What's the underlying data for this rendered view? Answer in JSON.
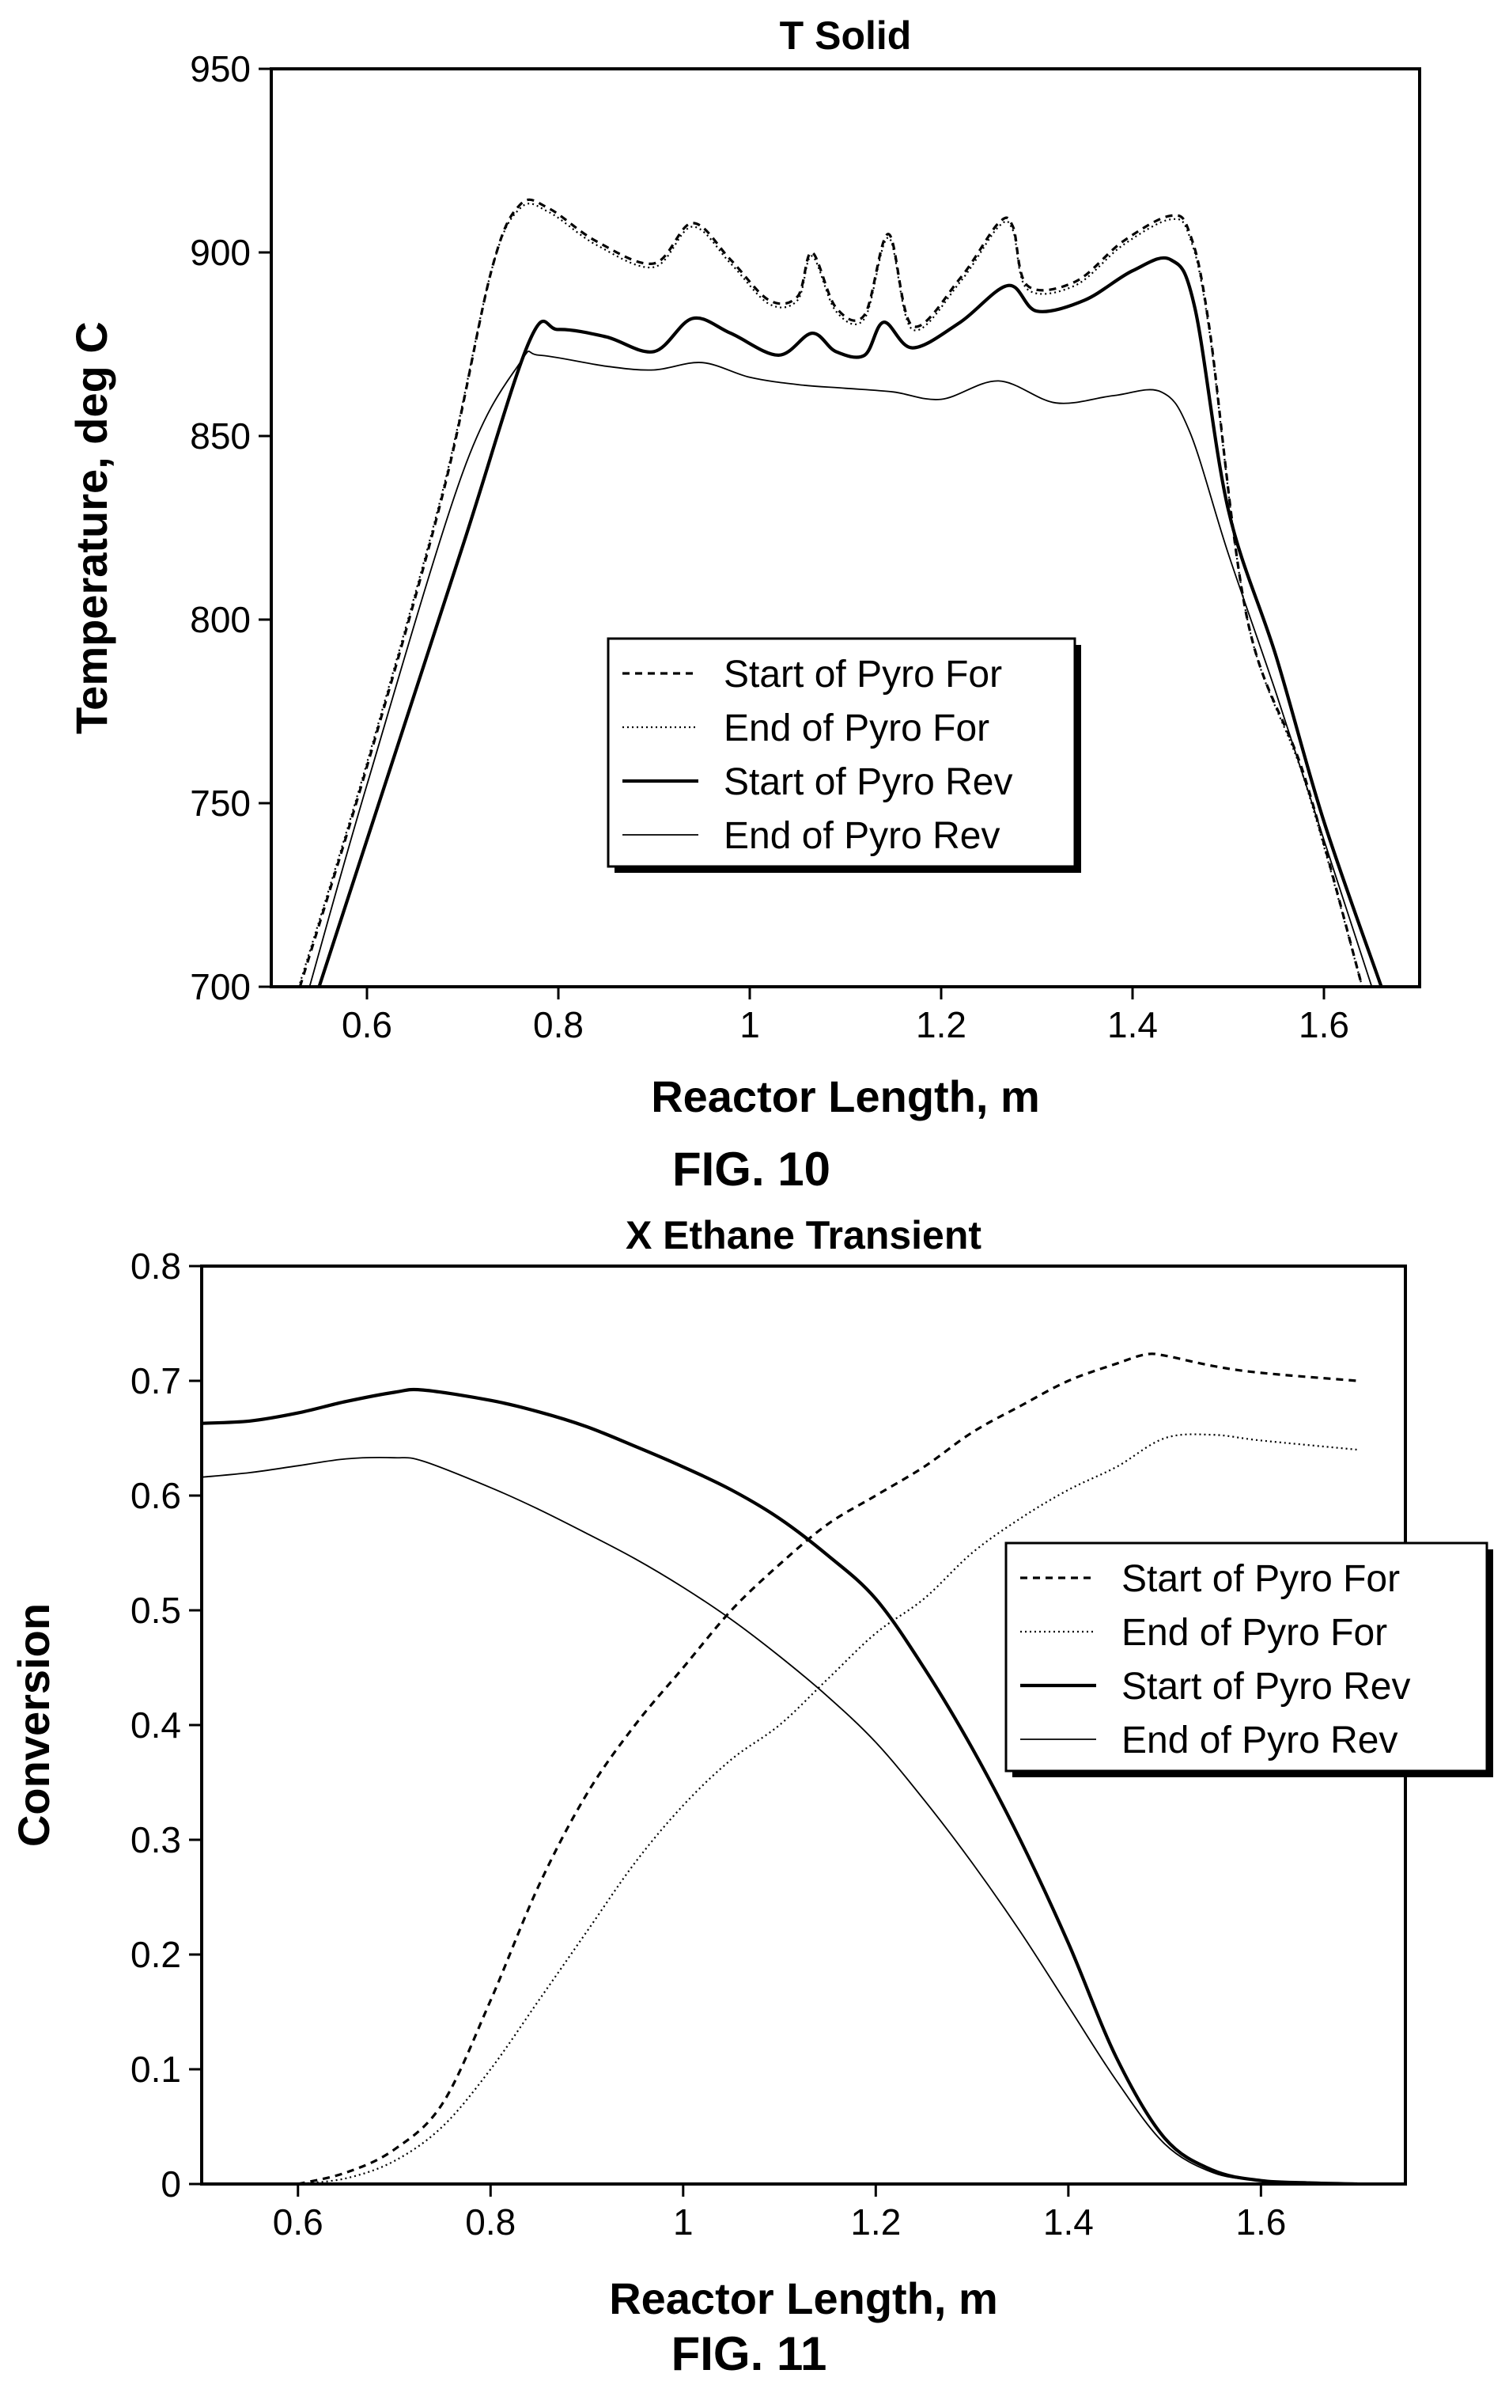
{
  "figures": [
    {
      "label": "FIG. 10"
    },
    {
      "label": "FIG. 11"
    }
  ],
  "chart_data": [
    {
      "type": "line",
      "title": "T Solid",
      "xlabel": "Reactor Length, m",
      "ylabel": "Temperature, deg C",
      "xlim": [
        0.5,
        1.7
      ],
      "ylim": [
        700,
        950
      ],
      "xticks": [
        0.6,
        0.8,
        1,
        1.2,
        1.4,
        1.6
      ],
      "yticks": [
        700,
        750,
        800,
        850,
        900,
        950
      ],
      "xtick_labels": [
        "0.6",
        "0.8",
        "1",
        "1.2",
        "1.4",
        "1.6"
      ],
      "ytick_labels": [
        "700",
        "750",
        "800",
        "850",
        "900",
        "950"
      ],
      "grid": false,
      "legend_placement": "center",
      "series": [
        {
          "name": "Start of Pyro For",
          "style": "dashed",
          "x": [
            0.53,
            0.6,
            0.68,
            0.73,
            0.76,
            0.79,
            0.84,
            0.9,
            0.94,
            0.98,
            1.02,
            1.05,
            1.065,
            1.09,
            1.12,
            1.145,
            1.17,
            1.22,
            1.26,
            1.275,
            1.29,
            1.34,
            1.39,
            1.44,
            1.46,
            1.48,
            1.52,
            1.58,
            1.64
          ],
          "y": [
            700,
            760,
            835,
            895,
            913,
            912,
            903,
            897,
            908,
            898,
            887,
            888,
            900,
            885,
            883,
            905,
            880,
            893,
            908,
            907,
            891,
            892,
            903,
            910,
            905,
            880,
            800,
            757,
            700
          ]
        },
        {
          "name": "End of Pyro For",
          "style": "dotted",
          "x": [
            0.53,
            0.6,
            0.68,
            0.73,
            0.76,
            0.79,
            0.84,
            0.9,
            0.94,
            0.98,
            1.02,
            1.05,
            1.065,
            1.09,
            1.12,
            1.145,
            1.17,
            1.22,
            1.26,
            1.275,
            1.29,
            1.34,
            1.39,
            1.44,
            1.46,
            1.48,
            1.52,
            1.58,
            1.64
          ],
          "y": [
            701,
            761,
            836,
            895,
            912,
            911,
            902,
            896,
            907,
            897,
            886,
            887,
            899,
            884,
            882,
            904,
            879,
            892,
            907,
            906,
            890,
            891,
            902,
            909,
            904,
            879,
            800,
            756,
            700
          ]
        },
        {
          "name": "Start of Pyro Rev",
          "style": "solid-thick",
          "x": [
            0.55,
            0.6,
            0.7,
            0.77,
            0.8,
            0.85,
            0.9,
            0.94,
            0.98,
            1.03,
            1.065,
            1.09,
            1.12,
            1.14,
            1.17,
            1.22,
            1.27,
            1.3,
            1.35,
            1.4,
            1.44,
            1.465,
            1.5,
            1.55,
            1.6,
            1.66
          ],
          "y": [
            700,
            740,
            820,
            876,
            879,
            877,
            873,
            882,
            878,
            872,
            878,
            873,
            872,
            881,
            874,
            881,
            891,
            884,
            887,
            895,
            898,
            885,
            830,
            790,
            745,
            700
          ]
        },
        {
          "name": "End of Pyro Rev",
          "style": "solid-thin",
          "x": [
            0.54,
            0.6,
            0.7,
            0.76,
            0.78,
            0.85,
            0.9,
            0.95,
            1.0,
            1.05,
            1.1,
            1.15,
            1.2,
            1.26,
            1.32,
            1.38,
            1.43,
            1.46,
            1.5,
            1.55,
            1.6,
            1.65
          ],
          "y": [
            700,
            755,
            840,
            870,
            872,
            869,
            868,
            870,
            866,
            864,
            863,
            862,
            860,
            865,
            859,
            861,
            862,
            851,
            818,
            780,
            740,
            700
          ]
        }
      ]
    },
    {
      "type": "line",
      "title": "X Ethane Transient",
      "xlabel": "Reactor Length, m",
      "ylabel": "Conversion",
      "xlim": [
        0.5,
        1.75
      ],
      "ylim": [
        0,
        0.8
      ],
      "xticks": [
        0.6,
        0.8,
        1,
        1.2,
        1.4,
        1.6
      ],
      "yticks": [
        0,
        0.1,
        0.2,
        0.3,
        0.4,
        0.5,
        0.6,
        0.7,
        0.8
      ],
      "xtick_labels": [
        "0.6",
        "0.8",
        "1",
        "1.2",
        "1.4",
        "1.6"
      ],
      "ytick_labels": [
        "0",
        "0.1",
        "0.2",
        "0.3",
        "0.4",
        "0.5",
        "0.6",
        "0.7",
        "0.8"
      ],
      "grid": false,
      "legend_placement": "center-right",
      "series": [
        {
          "name": "Start of Pyro For",
          "style": "dashed",
          "x": [
            0.6,
            0.65,
            0.7,
            0.75,
            0.8,
            0.85,
            0.9,
            0.95,
            1.0,
            1.05,
            1.1,
            1.15,
            1.2,
            1.25,
            1.3,
            1.35,
            1.4,
            1.45,
            1.48,
            1.5,
            1.55,
            1.6,
            1.7
          ],
          "y": [
            0.0,
            0.01,
            0.03,
            0.07,
            0.16,
            0.26,
            0.34,
            0.4,
            0.45,
            0.5,
            0.54,
            0.575,
            0.6,
            0.625,
            0.655,
            0.678,
            0.7,
            0.715,
            0.723,
            0.722,
            0.713,
            0.707,
            0.7
          ]
        },
        {
          "name": "End of Pyro For",
          "style": "dotted",
          "x": [
            0.6,
            0.65,
            0.7,
            0.75,
            0.8,
            0.85,
            0.9,
            0.95,
            1.0,
            1.05,
            1.1,
            1.15,
            1.2,
            1.25,
            1.3,
            1.35,
            1.4,
            1.45,
            1.5,
            1.55,
            1.6,
            1.7
          ],
          "y": [
            0.0,
            0.005,
            0.02,
            0.05,
            0.1,
            0.16,
            0.22,
            0.28,
            0.33,
            0.37,
            0.4,
            0.44,
            0.48,
            0.51,
            0.55,
            0.58,
            0.605,
            0.625,
            0.65,
            0.653,
            0.648,
            0.64
          ]
        },
        {
          "name": "Start of Pyro Rev",
          "style": "solid-thick",
          "x": [
            0.5,
            0.55,
            0.6,
            0.65,
            0.7,
            0.73,
            0.8,
            0.85,
            0.9,
            0.95,
            1.0,
            1.05,
            1.1,
            1.15,
            1.2,
            1.25,
            1.3,
            1.35,
            1.4,
            1.45,
            1.5,
            1.55,
            1.6,
            1.65,
            1.7
          ],
          "y": [
            0.663,
            0.665,
            0.672,
            0.682,
            0.69,
            0.692,
            0.683,
            0.673,
            0.66,
            0.643,
            0.625,
            0.605,
            0.58,
            0.548,
            0.51,
            0.45,
            0.38,
            0.3,
            0.21,
            0.11,
            0.04,
            0.012,
            0.003,
            0.001,
            0.0
          ]
        },
        {
          "name": "End of Pyro Rev",
          "style": "solid-thin",
          "x": [
            0.5,
            0.55,
            0.6,
            0.65,
            0.7,
            0.73,
            0.8,
            0.85,
            0.9,
            0.95,
            1.0,
            1.05,
            1.1,
            1.15,
            1.2,
            1.25,
            1.3,
            1.35,
            1.4,
            1.45,
            1.5,
            1.55,
            1.6,
            1.65,
            1.7
          ],
          "y": [
            0.616,
            0.62,
            0.626,
            0.632,
            0.633,
            0.63,
            0.607,
            0.588,
            0.567,
            0.545,
            0.52,
            0.492,
            0.46,
            0.425,
            0.385,
            0.335,
            0.28,
            0.22,
            0.155,
            0.09,
            0.035,
            0.01,
            0.003,
            0.001,
            0.0
          ]
        }
      ]
    }
  ]
}
